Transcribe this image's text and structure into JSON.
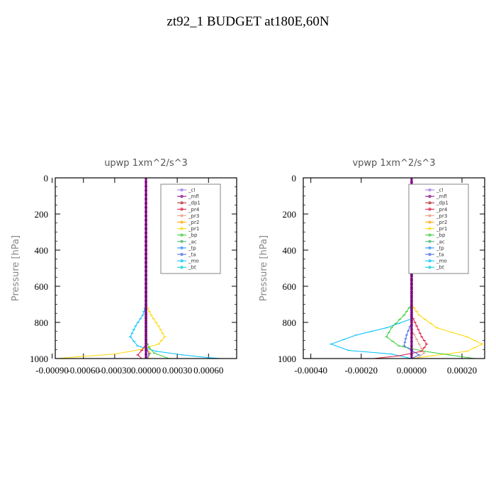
{
  "title": "zt92_1  BUDGET at180E,60N",
  "legend": [
    {
      "label": "_cl",
      "color": "#9370db",
      "marker": "+"
    },
    {
      "label": "_mfl",
      "color": "#800080",
      "marker": "x"
    },
    {
      "label": "_dp1",
      "color": "#b22222",
      "marker": "+"
    },
    {
      "label": "_pr4",
      "color": "#dc143c",
      "marker": "x"
    },
    {
      "label": "_pr3",
      "color": "#e9967a",
      "marker": "v"
    },
    {
      "label": "_pr2",
      "color": "#ffa500",
      "marker": "^"
    },
    {
      "label": "_pr1",
      "color": "#ffd700",
      "marker": "s"
    },
    {
      "label": "_bp",
      "color": "#32cd32",
      "marker": "x"
    },
    {
      "label": "_ac",
      "color": "#3cb371",
      "marker": "o"
    },
    {
      "label": "_tp",
      "color": "#1e90ff",
      "marker": "+"
    },
    {
      "label": "_ta",
      "color": "#4169e1",
      "marker": "+"
    },
    {
      "label": "_mo",
      "color": "#00bfff",
      "marker": "-"
    },
    {
      "label": "_bt",
      "color": "#00ced1",
      "marker": "d"
    }
  ],
  "chart_data": [
    {
      "type": "line",
      "title": "upwp   1xm^2/s^3",
      "ylabel": "Pressure [hPa]",
      "xlabel": "",
      "xlim": [
        -0.00087,
        0.00087
      ],
      "ylim": [
        1000,
        0
      ],
      "xticks": [
        -0.0009,
        -0.0006,
        -0.0003,
        0.0,
        0.0003,
        0.0006
      ],
      "xtick_labels": [
        "-0.00090",
        "-0.00060",
        "-0.00030",
        "0.00000",
        "0.00030",
        "0.00060"
      ],
      "yticks": [
        0,
        200,
        400,
        600,
        800,
        1000
      ],
      "ytick_labels": [
        "0",
        "200",
        "400",
        "600",
        "800",
        "1000"
      ],
      "legend_position": "top-right",
      "series": [
        {
          "name": "_pr1",
          "color": "#ffd700",
          "points": [
            [
              0,
              0
            ],
            [
              0,
              700
            ],
            [
              5e-05,
              760
            ],
            [
              0.00012,
              820
            ],
            [
              0.00018,
              880
            ],
            [
              0.00012,
              920
            ],
            [
              -5e-05,
              950
            ],
            [
              -0.0003,
              975
            ],
            [
              -0.00065,
              990
            ],
            [
              -0.00085,
              1000
            ]
          ]
        },
        {
          "name": "_mo",
          "color": "#00bfff",
          "points": [
            [
              0,
              0
            ],
            [
              0,
              700
            ],
            [
              -3e-05,
              760
            ],
            [
              -0.0001,
              820
            ],
            [
              -0.00015,
              880
            ],
            [
              -8e-05,
              930
            ],
            [
              0.0001,
              960
            ],
            [
              0.00035,
              980
            ],
            [
              0.0006,
              995
            ],
            [
              0.00072,
              1000
            ]
          ]
        },
        {
          "name": "_bp",
          "color": "#32cd32",
          "points": [
            [
              0,
              0
            ],
            [
              0,
              900
            ],
            [
              3e-05,
              940
            ],
            [
              8e-05,
              970
            ],
            [
              0.00022,
              1000
            ]
          ]
        },
        {
          "name": "_pr4",
          "color": "#dc143c",
          "points": [
            [
              0,
              0
            ],
            [
              0,
              920
            ],
            [
              -4e-05,
              955
            ],
            [
              -8e-05,
              980
            ],
            [
              -4e-05,
              1000
            ]
          ]
        },
        {
          "name": "_pr2",
          "color": "#ffa500",
          "points": [
            [
              0,
              0
            ],
            [
              0,
              940
            ],
            [
              4e-05,
              970
            ],
            [
              2e-05,
              1000
            ]
          ]
        },
        {
          "name": "_ta",
          "color": "#4169e1",
          "points": [
            [
              0,
              0
            ],
            [
              0,
              940
            ],
            [
              3e-05,
              975
            ],
            [
              1e-05,
              1000
            ]
          ]
        },
        {
          "name": "_mfl",
          "color": "#800080",
          "points": [
            [
              0,
              0
            ],
            [
              0,
              1000
            ]
          ]
        }
      ]
    },
    {
      "type": "line",
      "title": "vpwp   1xm^2/s^3",
      "ylabel": "Pressure [hPa]",
      "xlabel": "",
      "xlim": [
        -0.00043,
        0.00029
      ],
      "ylim": [
        1000,
        0
      ],
      "xticks": [
        -0.0004,
        -0.0002,
        0.0,
        0.0002
      ],
      "xtick_labels": [
        "-0.00040",
        "-0.00020",
        "0.00000",
        "0.00020"
      ],
      "yticks": [
        0,
        200,
        400,
        600,
        800,
        1000
      ],
      "ytick_labels": [
        "0",
        "200",
        "400",
        "600",
        "800",
        "1000"
      ],
      "legend_position": "top-right",
      "series": [
        {
          "name": "_pr1",
          "color": "#ffd700",
          "points": [
            [
              0,
              0
            ],
            [
              0,
              700
            ],
            [
              3e-05,
              760
            ],
            [
              0.0001,
              830
            ],
            [
              0.00022,
              880
            ],
            [
              0.00028,
              920
            ],
            [
              0.00022,
              960
            ],
            [
              8e-05,
              985
            ],
            [
              0,
              1000
            ]
          ]
        },
        {
          "name": "_mo",
          "color": "#00bfff",
          "points": [
            [
              0,
              0
            ],
            [
              0,
              780
            ],
            [
              -0.0001,
              830
            ],
            [
              -0.00022,
              870
            ],
            [
              -0.00032,
              920
            ],
            [
              -0.00025,
              955
            ],
            [
              -8e-05,
              975
            ],
            [
              0,
              1000
            ]
          ]
        },
        {
          "name": "_bp",
          "color": "#32cd32",
          "points": [
            [
              0,
              0
            ],
            [
              0,
              700
            ],
            [
              -3e-05,
              760
            ],
            [
              -8e-05,
              830
            ],
            [
              -0.0001,
              880
            ],
            [
              -5e-05,
              930
            ],
            [
              5e-05,
              960
            ],
            [
              0.00015,
              980
            ],
            [
              0.00025,
              1000
            ]
          ]
        },
        {
          "name": "_pr4",
          "color": "#dc143c",
          "points": [
            [
              0,
              0
            ],
            [
              0,
              760
            ],
            [
              2e-05,
              820
            ],
            [
              4e-05,
              880
            ],
            [
              6e-05,
              920
            ],
            [
              4e-05,
              960
            ],
            [
              -5e-05,
              985
            ],
            [
              -0.00015,
              1000
            ]
          ]
        },
        {
          "name": "_pr3",
          "color": "#e9967a",
          "points": [
            [
              0,
              0
            ],
            [
              0,
              840
            ],
            [
              3e-05,
              920
            ],
            [
              5e-05,
              970
            ],
            [
              2e-05,
              1000
            ]
          ]
        },
        {
          "name": "_ta",
          "color": "#4169e1",
          "points": [
            [
              0,
              0
            ],
            [
              0,
              800
            ],
            [
              -2e-05,
              870
            ],
            [
              -3e-05,
              930
            ],
            [
              3e-05,
              980
            ],
            [
              0,
              1000
            ]
          ]
        },
        {
          "name": "_mfl",
          "color": "#800080",
          "points": [
            [
              0,
              0
            ],
            [
              0,
              1000
            ]
          ]
        }
      ]
    }
  ]
}
